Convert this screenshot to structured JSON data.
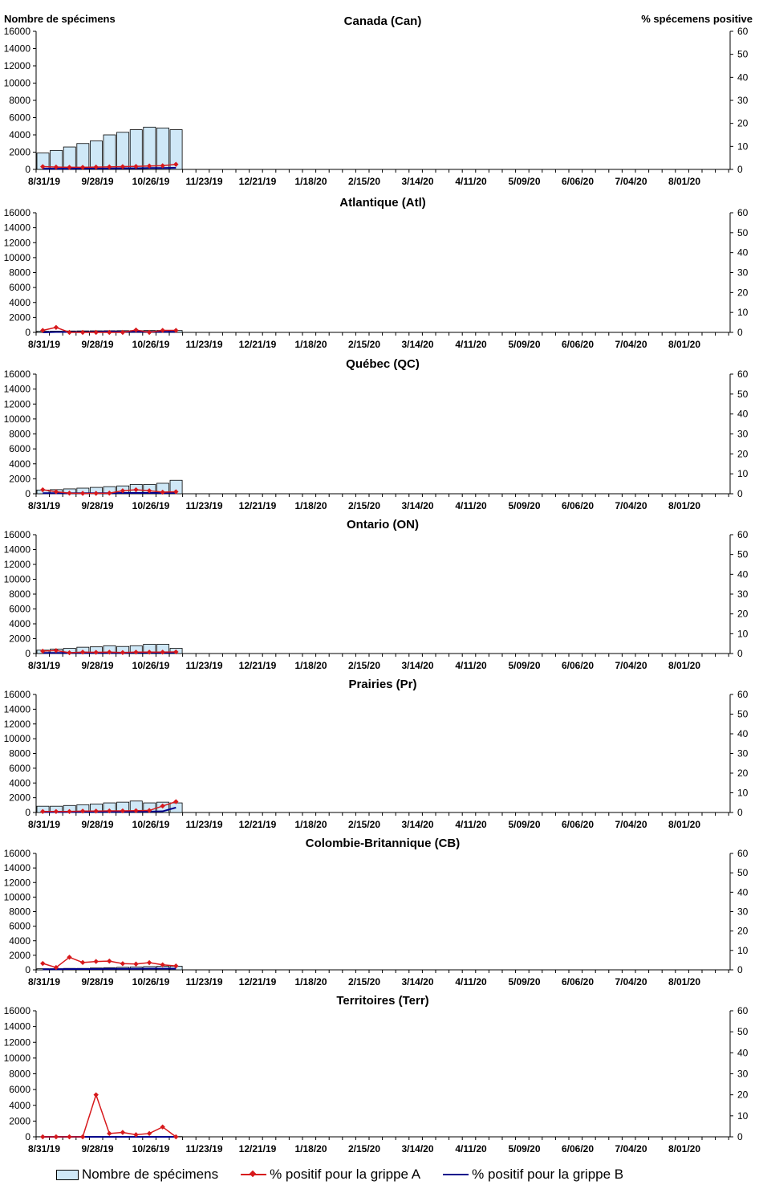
{
  "axis_labels": {
    "left": "Nombre de spécimens",
    "right": "% spécemens positive"
  },
  "colors": {
    "bars": "#cfe8f7",
    "flu_a": "#d7191c",
    "flu_b": "#00008b"
  },
  "legend": {
    "bars": "Nombre de spécimens",
    "flu_a": "% positif pour la grippe A",
    "flu_b": "% positif pour la grippe B"
  },
  "chart_data": [
    {
      "type": "bar",
      "title": "Canada (Can)",
      "x_tick_labels": [
        "8/31/19",
        "9/28/19",
        "10/26/19",
        "11/23/19",
        "12/21/19",
        "1/18/20",
        "2/15/20",
        "3/14/20",
        "4/11/20",
        "5/09/20",
        "6/06/20",
        "7/04/20",
        "8/01/20"
      ],
      "y_ticks": [
        0,
        2000,
        4000,
        6000,
        8000,
        10000,
        12000,
        14000,
        16000
      ],
      "y2_ticks": [
        0,
        10,
        20,
        30,
        40,
        50,
        60
      ],
      "ylim": [
        0,
        16000
      ],
      "y2lim": [
        0,
        60
      ],
      "series": [
        {
          "name": "Nombre de spécimens",
          "type": "bar",
          "values": [
            1900,
            2200,
            2600,
            3000,
            3300,
            4000,
            4300,
            4600,
            4900,
            4800,
            4600
          ]
        },
        {
          "name": "% positif pour la grippe A",
          "type": "line",
          "values": [
            1.2,
            1.0,
            0.9,
            0.9,
            1.0,
            1.1,
            1.2,
            1.3,
            1.5,
            1.6,
            2.2
          ]
        },
        {
          "name": "% positif pour la grippe B",
          "type": "line",
          "values": [
            0.3,
            0.3,
            0.3,
            0.4,
            0.4,
            0.4,
            0.5,
            0.5,
            0.6,
            0.6,
            0.7
          ]
        }
      ]
    },
    {
      "type": "bar",
      "title": "Atlantique (Atl)",
      "x_tick_labels": [
        "8/31/19",
        "9/28/19",
        "10/26/19",
        "11/23/19",
        "12/21/19",
        "1/18/20",
        "2/15/20",
        "3/14/20",
        "4/11/20",
        "5/09/20",
        "6/06/20",
        "7/04/20",
        "8/01/20"
      ],
      "y_ticks": [
        0,
        2000,
        4000,
        6000,
        8000,
        10000,
        12000,
        14000,
        16000
      ],
      "y2_ticks": [
        0,
        10,
        20,
        30,
        40,
        50,
        60
      ],
      "ylim": [
        0,
        16000
      ],
      "y2lim": [
        0,
        60
      ],
      "series": [
        {
          "name": "Nombre de spécimens",
          "type": "bar",
          "values": [
            150,
            170,
            190,
            200,
            210,
            220,
            230,
            240,
            250,
            260,
            250
          ]
        },
        {
          "name": "% positif pour la grippe A",
          "type": "line",
          "values": [
            1.0,
            2.5,
            0.0,
            0.0,
            0.0,
            0.0,
            0.0,
            1.2,
            0.0,
            1.0,
            1.0
          ]
        },
        {
          "name": "% positif pour la grippe B",
          "type": "line",
          "values": [
            0.0,
            0.2,
            0.2,
            0.2,
            0.2,
            0.5,
            0.3,
            0.3,
            0.3,
            0.3,
            0.3
          ]
        }
      ]
    },
    {
      "type": "bar",
      "title": "Québec (QC)",
      "x_tick_labels": [
        "8/31/19",
        "9/28/19",
        "10/26/19",
        "11/23/19",
        "12/21/19",
        "1/18/20",
        "2/15/20",
        "3/14/20",
        "4/11/20",
        "5/09/20",
        "6/06/20",
        "7/04/20",
        "8/01/20"
      ],
      "y_ticks": [
        0,
        2000,
        4000,
        6000,
        8000,
        10000,
        12000,
        14000,
        16000
      ],
      "y2_ticks": [
        0,
        10,
        20,
        30,
        40,
        50,
        60
      ],
      "ylim": [
        0,
        16000
      ],
      "y2lim": [
        0,
        60
      ],
      "series": [
        {
          "name": "Nombre de spécimens",
          "type": "bar",
          "values": [
            500,
            550,
            650,
            750,
            850,
            950,
            1050,
            1250,
            1250,
            1400,
            1800
          ]
        },
        {
          "name": "% positif pour la grippe A",
          "type": "line",
          "values": [
            2.0,
            1.0,
            0.3,
            0.2,
            0.2,
            0.3,
            1.5,
            2.0,
            1.5,
            0.8,
            1.0
          ]
        },
        {
          "name": "% positif pour la grippe B",
          "type": "line",
          "values": [
            0.3,
            0.3,
            0.3,
            0.3,
            0.3,
            0.3,
            0.4,
            0.4,
            0.4,
            0.4,
            0.4
          ]
        }
      ]
    },
    {
      "type": "bar",
      "title": "Ontario (ON)",
      "x_tick_labels": [
        "8/31/19",
        "9/28/19",
        "10/26/19",
        "11/23/19",
        "12/21/19",
        "1/18/20",
        "2/15/20",
        "3/14/20",
        "4/11/20",
        "5/09/20",
        "6/06/20",
        "7/04/20",
        "8/01/20"
      ],
      "y_ticks": [
        0,
        2000,
        4000,
        6000,
        8000,
        10000,
        12000,
        14000,
        16000
      ],
      "y2_ticks": [
        0,
        10,
        20,
        30,
        40,
        50,
        60
      ],
      "ylim": [
        0,
        16000
      ],
      "y2lim": [
        0,
        60
      ],
      "series": [
        {
          "name": "Nombre de spécimens",
          "type": "bar",
          "values": [
            450,
            600,
            700,
            850,
            900,
            1050,
            950,
            1050,
            1250,
            1250,
            700
          ]
        },
        {
          "name": "% positif pour la grippe A",
          "type": "line",
          "values": [
            1.2,
            1.5,
            0.4,
            0.7,
            0.6,
            0.7,
            0.5,
            0.7,
            0.7,
            0.7,
            0.8
          ]
        },
        {
          "name": "% positif pour la grippe B",
          "type": "line",
          "values": [
            0.3,
            0.3,
            0.3,
            0.3,
            0.3,
            0.3,
            0.3,
            0.4,
            0.4,
            0.4,
            0.4
          ]
        }
      ]
    },
    {
      "type": "bar",
      "title": "Prairies (Pr)",
      "x_tick_labels": [
        "8/31/19",
        "9/28/19",
        "10/26/19",
        "11/23/19",
        "12/21/19",
        "1/18/20",
        "2/15/20",
        "3/14/20",
        "4/11/20",
        "5/09/20",
        "6/06/20",
        "7/04/20",
        "8/01/20"
      ],
      "y_ticks": [
        0,
        2000,
        4000,
        6000,
        8000,
        10000,
        12000,
        14000,
        16000
      ],
      "y2_ticks": [
        0,
        10,
        20,
        30,
        40,
        50,
        60
      ],
      "ylim": [
        0,
        16000
      ],
      "y2lim": [
        0,
        60
      ],
      "series": [
        {
          "name": "Nombre de spécimens",
          "type": "bar",
          "values": [
            850,
            850,
            950,
            1050,
            1150,
            1300,
            1400,
            1550,
            1300,
            1400,
            1300
          ]
        },
        {
          "name": "% positif pour la grippe A",
          "type": "line",
          "values": [
            0.5,
            0.5,
            0.5,
            0.7,
            0.7,
            0.8,
            0.8,
            0.9,
            1.0,
            3.3,
            5.5
          ]
        },
        {
          "name": "% positif pour la grippe B",
          "type": "line",
          "values": [
            0.2,
            0.2,
            0.2,
            0.3,
            0.3,
            0.3,
            0.3,
            0.4,
            0.4,
            0.6,
            2.5
          ]
        }
      ]
    },
    {
      "type": "bar",
      "title": "Colombie-Britannique (CB)",
      "x_tick_labels": [
        "8/31/19",
        "9/28/19",
        "10/26/19",
        "11/23/19",
        "12/21/19",
        "1/18/20",
        "2/15/20",
        "3/14/20",
        "4/11/20",
        "5/09/20",
        "6/06/20",
        "7/04/20",
        "8/01/20"
      ],
      "y_ticks": [
        0,
        2000,
        4000,
        6000,
        8000,
        10000,
        12000,
        14000,
        16000
      ],
      "y2_ticks": [
        0,
        10,
        20,
        30,
        40,
        50,
        60
      ],
      "ylim": [
        0,
        16000
      ],
      "y2lim": [
        0,
        60
      ],
      "series": [
        {
          "name": "Nombre de spécimens",
          "type": "bar",
          "values": [
            150,
            150,
            200,
            200,
            250,
            300,
            350,
            400,
            450,
            500,
            500
          ]
        },
        {
          "name": "% positif pour la grippe A",
          "type": "line",
          "values": [
            3.3,
            1.2,
            6.5,
            3.8,
            4.3,
            4.5,
            3.2,
            3.0,
            3.7,
            2.6,
            2.0
          ]
        },
        {
          "name": "% positif pour la grippe B",
          "type": "line",
          "values": [
            0.3,
            0.3,
            0.4,
            0.4,
            0.4,
            0.5,
            0.5,
            0.5,
            0.6,
            0.6,
            0.6
          ]
        }
      ]
    },
    {
      "type": "bar",
      "title": "Territoires (Terr)",
      "x_tick_labels": [
        "8/31/19",
        "9/28/19",
        "10/26/19",
        "11/23/19",
        "12/21/19",
        "1/18/20",
        "2/15/20",
        "3/14/20",
        "4/11/20",
        "5/09/20",
        "6/06/20",
        "7/04/20",
        "8/01/20"
      ],
      "y_ticks": [
        0,
        2000,
        4000,
        6000,
        8000,
        10000,
        12000,
        14000,
        16000
      ],
      "y2_ticks": [
        0,
        10,
        20,
        30,
        40,
        50,
        60
      ],
      "ylim": [
        0,
        16000
      ],
      "y2lim": [
        0,
        60
      ],
      "series": [
        {
          "name": "Nombre de spécimens",
          "type": "bar",
          "values": [
            20,
            20,
            20,
            25,
            25,
            25,
            30,
            30,
            30,
            35,
            35
          ]
        },
        {
          "name": "% positif pour la grippe A",
          "type": "line",
          "values": [
            0,
            0,
            0,
            0,
            20.0,
            1.6,
            2.1,
            1.0,
            1.6,
            4.7,
            0
          ]
        },
        {
          "name": "% positif pour la grippe B",
          "type": "line",
          "values": [
            0,
            0,
            0,
            0,
            0,
            0,
            0,
            0,
            0,
            0,
            0
          ]
        }
      ]
    }
  ]
}
